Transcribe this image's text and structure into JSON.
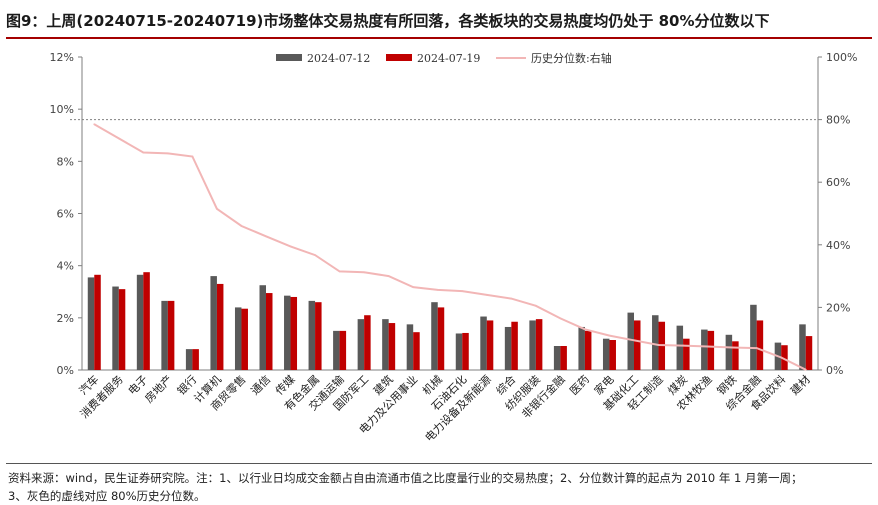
{
  "title": "图9：上周(20240715-20240719)市场整体交易热度有所回落，各类板块的交易热度均仍处于 80%分位数以下",
  "footnote_line1": "资料来源：wind，民生证券研究院。注：1、以行业日均成交金额占自由流通市值之比度量行业的交易热度；2、分位数计算的起点为 2010 年 1 月第一周；",
  "footnote_line2": "3、灰色的虚线对应 80%历史分位数。",
  "colors": {
    "series1": "#595959",
    "series2": "#c00000",
    "line": "#f2b6b6",
    "threshold": "#808080"
  },
  "chart_data": {
    "type": "bar",
    "categories": [
      "汽车",
      "消费者服务",
      "电子",
      "房地产",
      "银行",
      "计算机",
      "商贸零售",
      "通信",
      "传媒",
      "有色金属",
      "交通运输",
      "国防军工",
      "建筑",
      "电力及公用事业",
      "机械",
      "石油石化",
      "电力设备及新能源",
      "综合",
      "纺织服装",
      "非银行金融",
      "医药",
      "家电",
      "基础化工",
      "轻工制造",
      "煤炭",
      "农林牧渔",
      "钢铁",
      "综合金融",
      "食品饮料",
      "建材"
    ],
    "series": [
      {
        "name": "2024-07-12",
        "axis": "left",
        "values": [
          3.55,
          3.2,
          3.65,
          2.65,
          0.8,
          3.6,
          2.4,
          3.25,
          2.85,
          2.65,
          1.5,
          1.95,
          1.95,
          1.75,
          2.6,
          1.4,
          2.05,
          1.65,
          1.9,
          0.92,
          1.65,
          1.2,
          2.2,
          2.1,
          1.7,
          1.55,
          1.35,
          2.5,
          1.05,
          1.75
        ]
      },
      {
        "name": "2024-07-19",
        "axis": "left",
        "values": [
          3.65,
          3.1,
          3.75,
          2.65,
          0.8,
          3.3,
          2.35,
          2.95,
          2.8,
          2.6,
          1.5,
          2.1,
          1.8,
          1.45,
          2.4,
          1.42,
          1.9,
          1.85,
          1.95,
          0.92,
          1.5,
          1.15,
          1.9,
          1.85,
          1.2,
          1.5,
          1.1,
          1.9,
          0.95,
          1.3
        ]
      },
      {
        "name": "历史分位数:右轴",
        "type": "line",
        "axis": "right",
        "values": [
          78.5,
          74,
          69.5,
          69.2,
          68.2,
          51.5,
          46,
          42.7,
          39.5,
          36.7,
          31.5,
          31.2,
          30,
          26.5,
          25.6,
          25.2,
          24,
          22.8,
          20.5,
          16.5,
          13,
          11,
          9.5,
          8,
          7.8,
          7.5,
          7.2,
          7,
          4,
          0.1
        ]
      }
    ],
    "ylim_left": [
      0,
      12
    ],
    "yticks_left": [
      "0%",
      "2%",
      "4%",
      "6%",
      "8%",
      "10%",
      "12%"
    ],
    "ylim_right": [
      0,
      100
    ],
    "yticks_right": [
      "0%",
      "20%",
      "40%",
      "60%",
      "80%",
      "100%"
    ],
    "reference_line": {
      "axis": "right",
      "value": 80,
      "style": "dashed"
    },
    "legend_position": "top-center",
    "grid": false
  }
}
